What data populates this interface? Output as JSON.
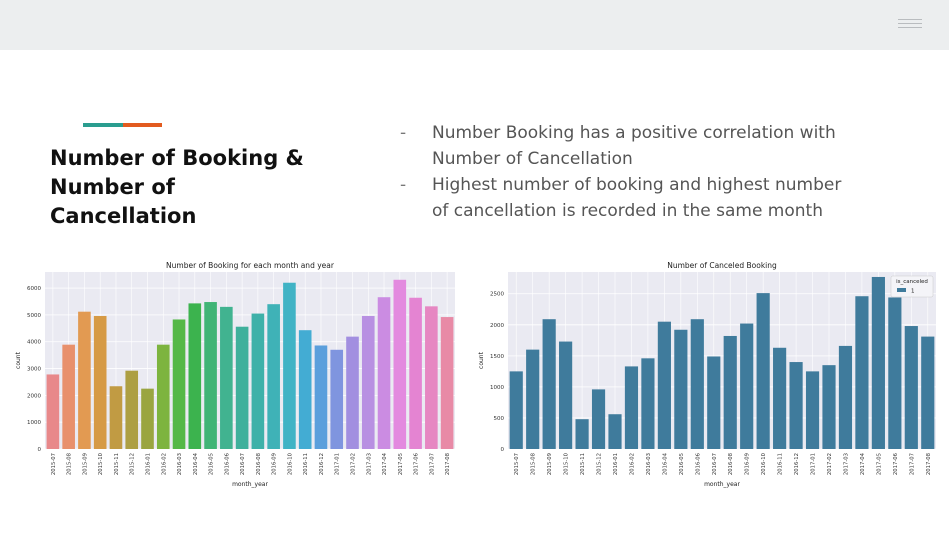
{
  "colors": {
    "topbar": "#eceeef",
    "accent_teal": "#2a9d8f",
    "accent_orange": "#e25b1f",
    "plot_bg": "#eaeaf2",
    "canceled_bar": "#3f7b9c"
  },
  "header": {
    "menu_icon": "hamburger-icon"
  },
  "slide": {
    "title": "Number of Booking & Number of Cancellation",
    "bullets": [
      {
        "dash": "-",
        "text": "Number Booking has a positive correlation with Number of Cancellation"
      },
      {
        "dash": "-",
        "text": "Highest number of booking and highest number of cancellation is recorded in the same month"
      }
    ]
  },
  "chart_data": [
    {
      "type": "bar",
      "title": "Number of Booking for each month and year",
      "xlabel": "month_year",
      "ylabel": "count",
      "ylim": [
        0,
        6600
      ],
      "yticks": [
        0,
        1000,
        2000,
        3000,
        4000,
        5000,
        6000
      ],
      "grid": true,
      "categories": [
        "2015-07",
        "2015-08",
        "2015-09",
        "2015-10",
        "2015-11",
        "2015-12",
        "2016-01",
        "2016-02",
        "2016-03",
        "2016-04",
        "2016-05",
        "2016-06",
        "2016-07",
        "2016-08",
        "2016-09",
        "2016-10",
        "2016-11",
        "2016-12",
        "2017-01",
        "2017-02",
        "2017-03",
        "2017-04",
        "2017-05",
        "2017-06",
        "2017-07",
        "2017-08"
      ],
      "values": [
        2780,
        3890,
        5120,
        4960,
        2340,
        2920,
        2250,
        3890,
        4830,
        5430,
        5480,
        5300,
        4560,
        5050,
        5400,
        6200,
        4430,
        3860,
        3700,
        4190,
        4960,
        5660,
        6310,
        5640,
        5320,
        4920
      ],
      "colors": [
        "#e8888a",
        "#e8906c",
        "#e29a52",
        "#d69a45",
        "#c19b43",
        "#ad9f43",
        "#9aa540",
        "#7db43f",
        "#55b847",
        "#3cb34e",
        "#40b476",
        "#41b390",
        "#3fb09c",
        "#3eb1a9",
        "#3fb2b7",
        "#40b3c5",
        "#43acd3",
        "#5b9fdc",
        "#7f95df",
        "#a28fe0",
        "#b890e2",
        "#cb8ce2",
        "#e38adf",
        "#e484d2",
        "#e687c2",
        "#e88aa6"
      ]
    },
    {
      "type": "bar",
      "title": "Number of Canceled Booking",
      "xlabel": "month_year",
      "ylabel": "count",
      "ylim": [
        0,
        2850
      ],
      "yticks": [
        0,
        500,
        1000,
        1500,
        2000,
        2500
      ],
      "grid": true,
      "legend": {
        "title": "is_canceled",
        "entries": [
          "1"
        ],
        "placement": "top-right"
      },
      "categories": [
        "2015-07",
        "2015-08",
        "2015-09",
        "2015-10",
        "2015-11",
        "2015-12",
        "2016-01",
        "2016-02",
        "2016-03",
        "2016-04",
        "2016-05",
        "2016-06",
        "2016-07",
        "2016-08",
        "2016-09",
        "2016-10",
        "2016-11",
        "2016-12",
        "2017-01",
        "2017-02",
        "2017-03",
        "2017-04",
        "2017-05",
        "2017-06",
        "2017-07",
        "2017-08"
      ],
      "series": [
        {
          "name": "1",
          "values": [
            1250,
            1600,
            2090,
            1730,
            480,
            960,
            560,
            1330,
            1460,
            2050,
            1920,
            2090,
            1490,
            1820,
            2020,
            2510,
            1630,
            1400,
            1250,
            1350,
            1660,
            2460,
            2770,
            2440,
            1980,
            1810
          ]
        }
      ]
    }
  ]
}
